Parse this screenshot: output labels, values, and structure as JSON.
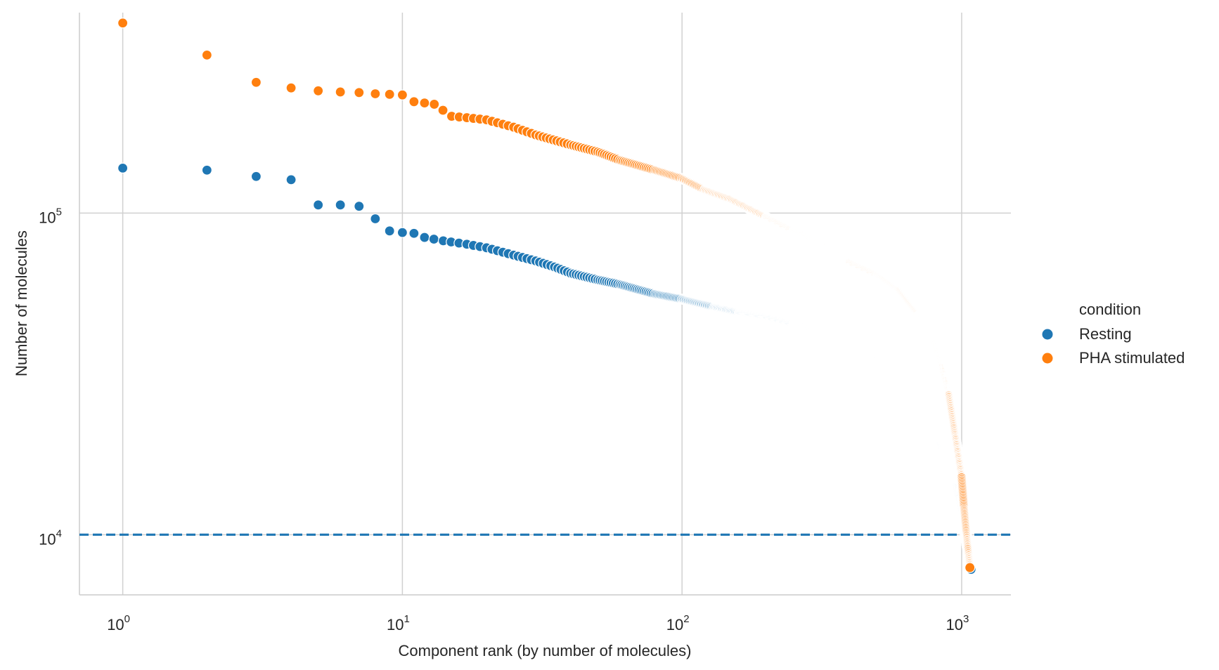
{
  "chart_data": {
    "type": "scatter",
    "title": "",
    "xlabel": "Component rank (by number of molecules)",
    "ylabel": "Number of molecules",
    "x_scale": "log",
    "y_scale": "log",
    "xlim": [
      0.7,
      1500
    ],
    "ylim": [
      6500,
      420000
    ],
    "grid": true,
    "x_ticks": [
      {
        "base": "10",
        "exp": "0"
      },
      {
        "base": "10",
        "exp": "1"
      },
      {
        "base": "10",
        "exp": "2"
      },
      {
        "base": "10",
        "exp": "3"
      }
    ],
    "y_ticks": [
      {
        "base": "10",
        "exp": "4"
      },
      {
        "base": "10",
        "exp": "5"
      }
    ],
    "reference_line": {
      "y": 10000,
      "style": "dashed",
      "color": "#1f77b4"
    },
    "legend": {
      "title": "condition",
      "position": "right"
    },
    "series": [
      {
        "name": "Resting",
        "color": "#1f77b4",
        "points": [
          [
            1,
            138000
          ],
          [
            2,
            136000
          ],
          [
            3,
            130000
          ],
          [
            4,
            127000
          ],
          [
            5,
            106000
          ],
          [
            6,
            106000
          ],
          [
            7,
            105000
          ],
          [
            8,
            96000
          ],
          [
            9,
            88000
          ],
          [
            10,
            87000
          ],
          [
            11,
            86500
          ],
          [
            12,
            84000
          ],
          [
            14,
            82000
          ],
          [
            17,
            80000
          ],
          [
            20,
            78000
          ],
          [
            25,
            74000
          ],
          [
            30,
            71000
          ],
          [
            35,
            68000
          ],
          [
            40,
            65000
          ],
          [
            50,
            62000
          ],
          [
            60,
            60000
          ],
          [
            80,
            56000
          ],
          [
            100,
            54000
          ],
          [
            130,
            51000
          ],
          [
            160,
            49000
          ],
          [
            200,
            47500
          ],
          [
            250,
            45000
          ],
          [
            300,
            43000
          ],
          [
            350,
            41000
          ],
          [
            400,
            39000
          ],
          [
            450,
            37000
          ],
          [
            500,
            34500
          ],
          [
            550,
            33000
          ],
          [
            600,
            31000
          ],
          [
            650,
            29000
          ],
          [
            700,
            26000
          ],
          [
            750,
            24000
          ],
          [
            800,
            21000
          ],
          [
            850,
            18000
          ],
          [
            900,
            16000
          ],
          [
            950,
            14000
          ],
          [
            1000,
            11500
          ],
          [
            1030,
            10000
          ],
          [
            1060,
            8500
          ],
          [
            1080,
            7800
          ]
        ]
      },
      {
        "name": "PHA stimulated",
        "color": "#ff7f0e",
        "points": [
          [
            1,
            390000
          ],
          [
            2,
            310000
          ],
          [
            3,
            255000
          ],
          [
            4,
            245000
          ],
          [
            5,
            240000
          ],
          [
            6,
            238000
          ],
          [
            7,
            237000
          ],
          [
            8,
            235000
          ],
          [
            9,
            234000
          ],
          [
            10,
            233000
          ],
          [
            11,
            222000
          ],
          [
            12,
            220000
          ],
          [
            13,
            218000
          ],
          [
            15,
            200000
          ],
          [
            17,
            198000
          ],
          [
            20,
            195000
          ],
          [
            25,
            185000
          ],
          [
            30,
            175000
          ],
          [
            40,
            163000
          ],
          [
            50,
            155000
          ],
          [
            60,
            146000
          ],
          [
            80,
            136000
          ],
          [
            100,
            128000
          ],
          [
            120,
            118000
          ],
          [
            150,
            110000
          ],
          [
            200,
            97000
          ],
          [
            250,
            88000
          ],
          [
            300,
            82000
          ],
          [
            350,
            76000
          ],
          [
            400,
            70000
          ],
          [
            500,
            64000
          ],
          [
            600,
            57000
          ],
          [
            700,
            48000
          ],
          [
            750,
            44000
          ],
          [
            800,
            39000
          ],
          [
            850,
            33000
          ],
          [
            900,
            27000
          ],
          [
            950,
            20000
          ],
          [
            1000,
            15000
          ],
          [
            1020,
            12000
          ],
          [
            1040,
            10000
          ],
          [
            1060,
            8500
          ],
          [
            1070,
            7900
          ]
        ]
      }
    ]
  }
}
